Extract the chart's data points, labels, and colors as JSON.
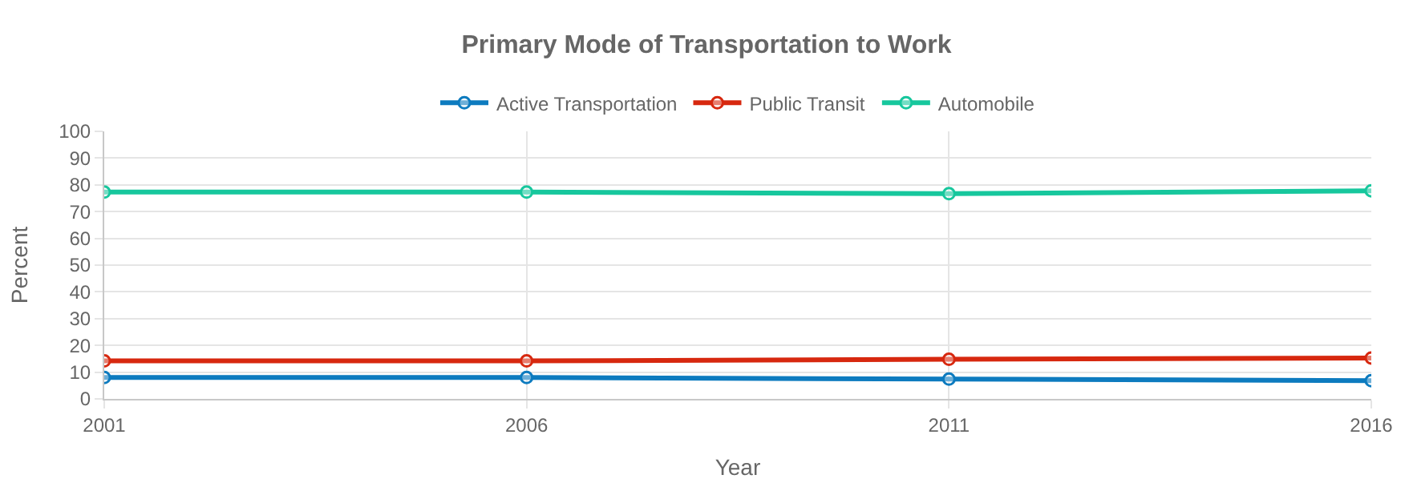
{
  "chart_data": {
    "type": "line",
    "title": "Primary Mode of Transportation to Work",
    "xlabel": "Year",
    "ylabel": "Percent",
    "x": [
      2001,
      2006,
      2011,
      2016
    ],
    "series": [
      {
        "name": "Active Transportation",
        "color": "#0d7bbf",
        "values": [
          8.0,
          8.0,
          7.4,
          6.8
        ]
      },
      {
        "name": "Public Transit",
        "color": "#d7280f",
        "values": [
          14.2,
          14.2,
          14.8,
          15.3
        ]
      },
      {
        "name": "Automobile",
        "color": "#17c79d",
        "values": [
          77.3,
          77.3,
          76.7,
          77.8
        ]
      }
    ],
    "xlim": [
      2001,
      2016
    ],
    "xticks": [
      2001,
      2006,
      2011,
      2016
    ],
    "ylim": [
      0,
      100
    ],
    "yticks": [
      0,
      10,
      20,
      30,
      40,
      50,
      60,
      70,
      80,
      90,
      100
    ],
    "grid": true,
    "legend": "top",
    "marker": "circle",
    "line_style": "solid"
  }
}
